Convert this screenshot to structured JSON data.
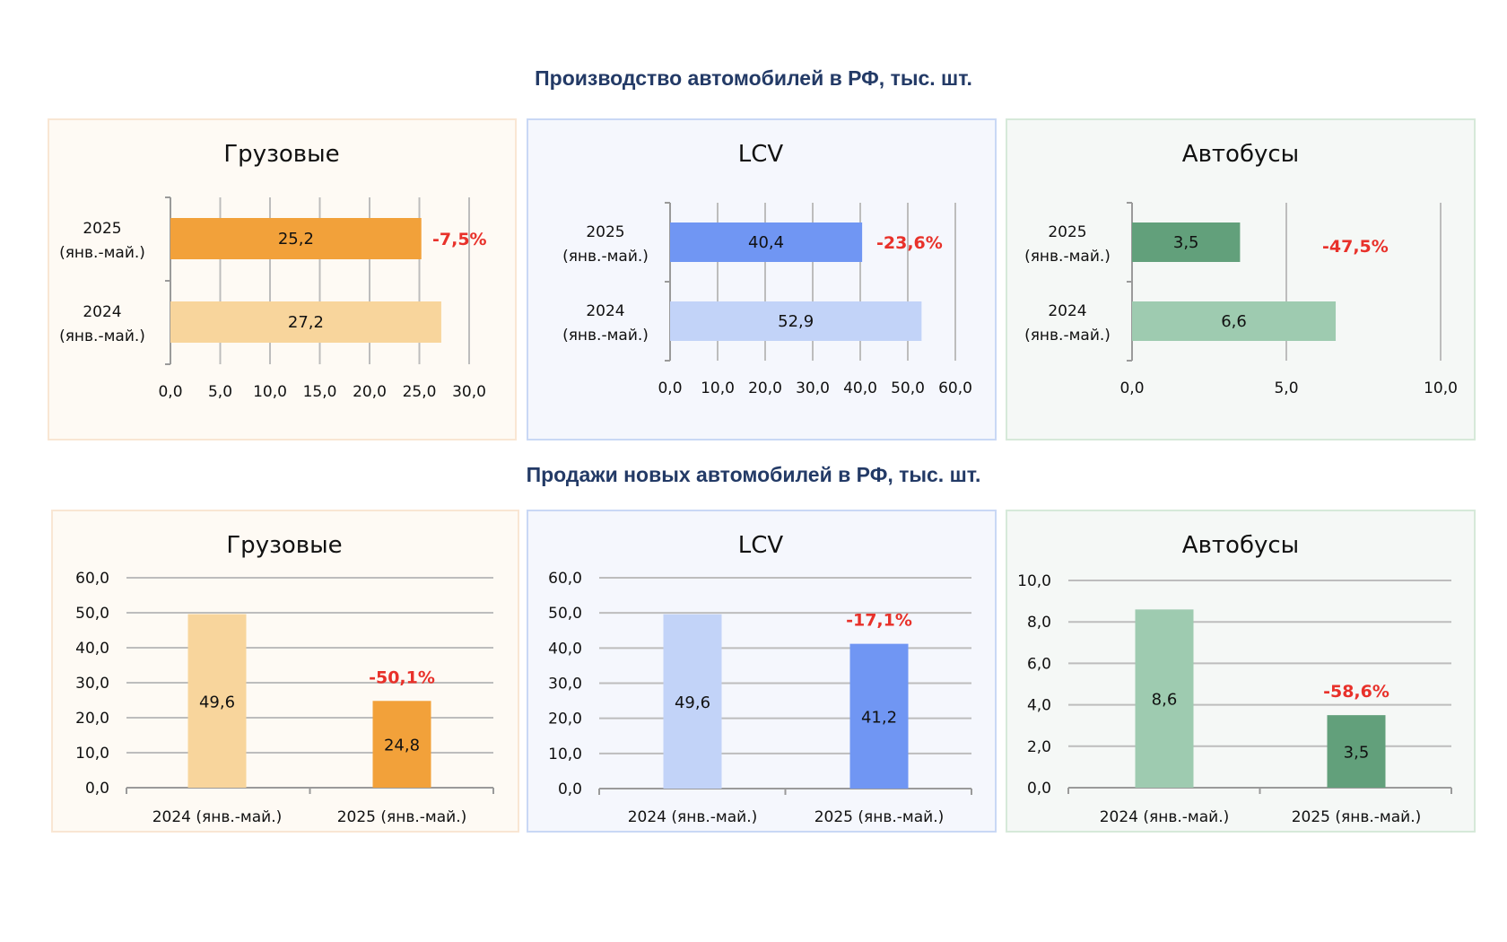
{
  "titles": {
    "production": "Производство автомобилей в РФ, тыс. шт.",
    "sales": "Продажи новых автомобилей в РФ, тыс. шт."
  },
  "colors": {
    "orange_2025": "#f2a13a",
    "orange_2024": "#f8d59c",
    "blue_2025": "#7096f3",
    "blue_2024": "#c2d3f8",
    "green_2025": "#62a07b",
    "green_2024": "#9ecbb0",
    "change_red": "#e8312a",
    "section_title": "#233a66"
  },
  "chart_data": [
    {
      "id": "prod-trucks",
      "type": "bar",
      "orientation": "horizontal",
      "section": "production",
      "title": "Грузовые",
      "categories": [
        "2025",
        "2024"
      ],
      "category_sub": "(янв.-май.)",
      "values": [
        25.2,
        27.2
      ],
      "value_labels": [
        "25,2",
        "27,2"
      ],
      "change_label": "-7,5%",
      "xlim": [
        0,
        30
      ],
      "ticks": [
        0,
        5,
        10,
        15,
        20,
        25,
        30
      ],
      "tick_labels": [
        "0,0",
        "5,0",
        "10,0",
        "15,0",
        "20,0",
        "25,0",
        "30,0"
      ],
      "grid": true,
      "palette": "orange"
    },
    {
      "id": "prod-lcv",
      "type": "bar",
      "orientation": "horizontal",
      "section": "production",
      "title": "LCV",
      "categories": [
        "2025",
        "2024"
      ],
      "category_sub": "(янв.-май.)",
      "values": [
        40.4,
        52.9
      ],
      "value_labels": [
        "40,4",
        "52,9"
      ],
      "change_label": "-23,6%",
      "xlim": [
        0,
        60
      ],
      "ticks": [
        0,
        10,
        20,
        30,
        40,
        50,
        60
      ],
      "tick_labels": [
        "0,0",
        "10,0",
        "20,0",
        "30,0",
        "40,0",
        "50,0",
        "60,0"
      ],
      "grid": true,
      "palette": "blue"
    },
    {
      "id": "prod-buses",
      "type": "bar",
      "orientation": "horizontal",
      "section": "production",
      "title": "Автобусы",
      "categories": [
        "2025",
        "2024"
      ],
      "category_sub": "(янв.-май.)",
      "values": [
        3.5,
        6.6
      ],
      "value_labels": [
        "3,5",
        "6,6"
      ],
      "change_label": "-47,5%",
      "xlim": [
        0,
        10
      ],
      "ticks": [
        0,
        5,
        10
      ],
      "tick_labels": [
        "0,0",
        "5,0",
        "10,0"
      ],
      "grid": true,
      "palette": "green"
    },
    {
      "id": "sales-trucks",
      "type": "bar",
      "orientation": "vertical",
      "section": "sales",
      "title": "Грузовые",
      "categories": [
        "2024 (янв.-май.)",
        "2025 (янв.-май.)"
      ],
      "values": [
        49.6,
        24.8
      ],
      "value_labels": [
        "49,6",
        "24,8"
      ],
      "change_label": "-50,1%",
      "ylim": [
        0,
        60
      ],
      "ticks": [
        0,
        10,
        20,
        30,
        40,
        50,
        60
      ],
      "tick_labels": [
        "0,0",
        "10,0",
        "20,0",
        "30,0",
        "40,0",
        "50,0",
        "60,0"
      ],
      "grid": true,
      "palette": "orange"
    },
    {
      "id": "sales-lcv",
      "type": "bar",
      "orientation": "vertical",
      "section": "sales",
      "title": "LCV",
      "categories": [
        "2024 (янв.-май.)",
        "2025 (янв.-май.)"
      ],
      "values": [
        49.6,
        41.2
      ],
      "value_labels": [
        "49,6",
        "41,2"
      ],
      "change_label": "-17,1%",
      "ylim": [
        0,
        60
      ],
      "ticks": [
        0,
        10,
        20,
        30,
        40,
        50,
        60
      ],
      "tick_labels": [
        "0,0",
        "10,0",
        "20,0",
        "30,0",
        "40,0",
        "50,0",
        "60,0"
      ],
      "grid": true,
      "palette": "blue"
    },
    {
      "id": "sales-buses",
      "type": "bar",
      "orientation": "vertical",
      "section": "sales",
      "title": "Автобусы",
      "categories": [
        "2024 (янв.-май.)",
        "2025 (янв.-май.)"
      ],
      "values": [
        8.6,
        3.5
      ],
      "value_labels": [
        "8,6",
        "3,5"
      ],
      "change_label": "-58,6%",
      "ylim": [
        0,
        10
      ],
      "ticks": [
        0,
        2,
        4,
        6,
        8,
        10
      ],
      "tick_labels": [
        "0,0",
        "2,0",
        "4,0",
        "6,0",
        "8,0",
        "10,0"
      ],
      "grid": true,
      "palette": "green"
    }
  ]
}
